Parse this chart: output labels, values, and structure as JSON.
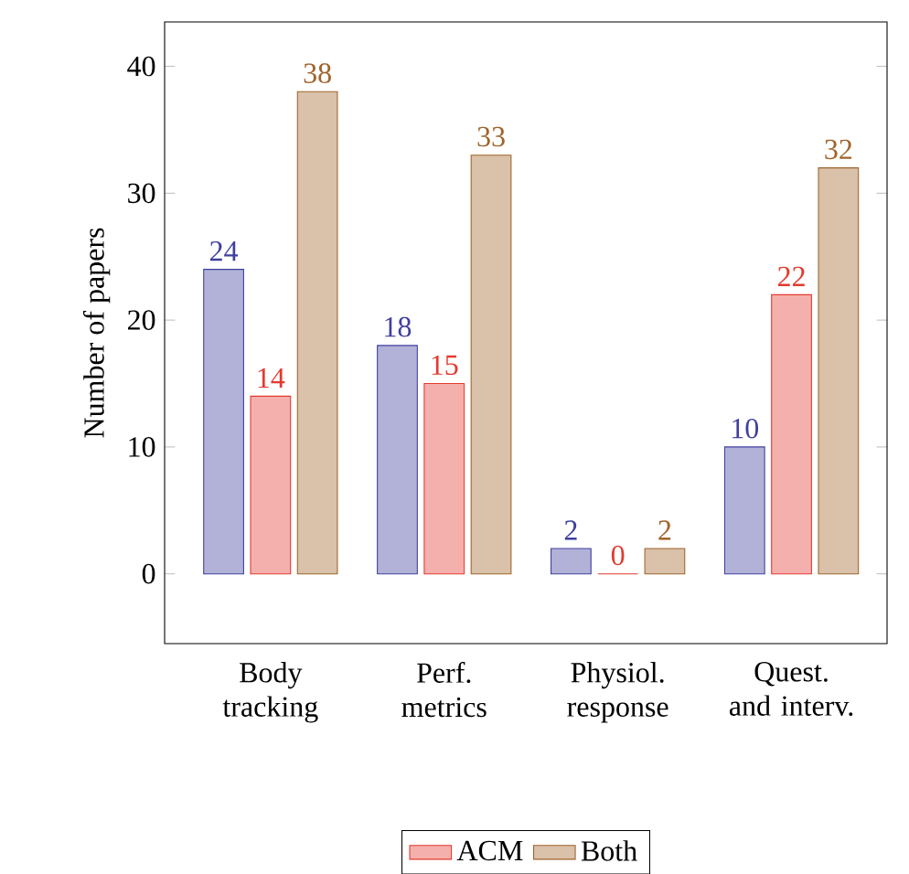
{
  "chart_data": {
    "type": "bar",
    "ylabel": "Number of papers",
    "categories": [
      "Body tracking",
      "Perf. metrics",
      "Physiol. response",
      "Quest. and interv."
    ],
    "series": [
      {
        "color": "#3f3f9f",
        "values": [
          24,
          18,
          2,
          10
        ]
      },
      {
        "name": "ACM",
        "color": "#e33a2f",
        "values": [
          14,
          15,
          0,
          22
        ]
      },
      {
        "name": "Both",
        "color": "#a0632a",
        "values": [
          38,
          33,
          2,
          32
        ]
      }
    ],
    "ylim": [
      -5.5,
      43.5
    ],
    "yticks": [
      0,
      10,
      20,
      30,
      40
    ],
    "data_labels": true,
    "legend": "bottom"
  }
}
